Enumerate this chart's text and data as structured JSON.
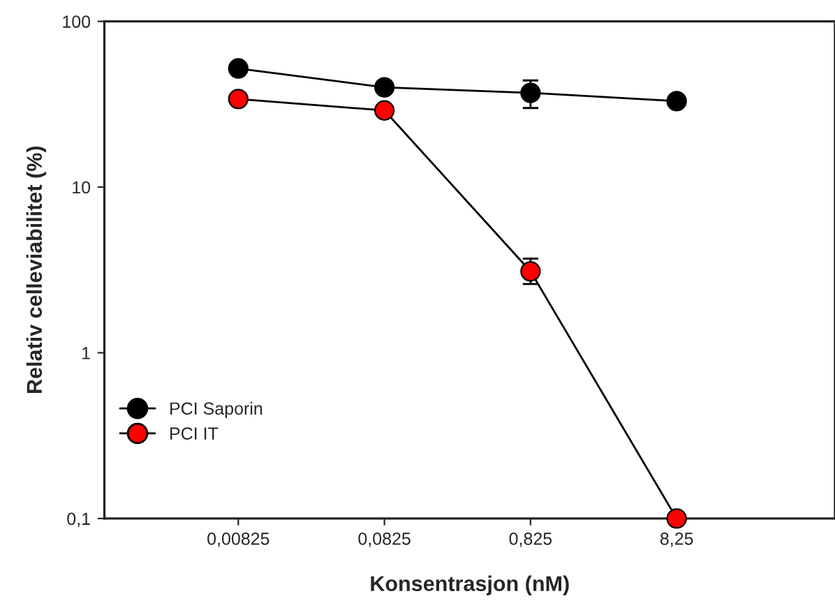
{
  "chart_data": {
    "type": "line",
    "xlabel": "Konsentrasjon (nM)",
    "ylabel": "Relativ celleviabilitet (%)",
    "x": [
      0.00825,
      0.0825,
      0.825,
      8.25
    ],
    "log": "xy",
    "xlim": [
      0.001,
      100
    ],
    "ylim": [
      0.1,
      100
    ],
    "xticks": [
      {
        "value": 0.00825,
        "label": "0,00825"
      },
      {
        "value": 0.0825,
        "label": "0,0825"
      },
      {
        "value": 0.825,
        "label": "0,825"
      },
      {
        "value": 8.25,
        "label": "8,25"
      }
    ],
    "yticks": [
      {
        "value": 0.1,
        "label": "0,1"
      },
      1,
      10,
      100
    ],
    "series": [
      {
        "name": "PCI Saporin",
        "color": "#000000",
        "values": [
          52,
          40,
          37,
          33
        ],
        "errors": [
          null,
          null,
          [
            30,
            44
          ],
          null
        ]
      },
      {
        "name": "PCI IT",
        "color": "#ff0000",
        "values": [
          34,
          29,
          3.1,
          0.1
        ],
        "errors": [
          null,
          null,
          [
            2.6,
            3.7
          ],
          null
        ]
      }
    ],
    "marker": "circle",
    "line_style": "solid",
    "grid": false,
    "legend": "bottom left"
  }
}
